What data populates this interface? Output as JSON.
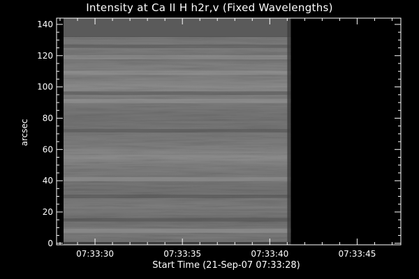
{
  "chart_data": {
    "type": "heatmap",
    "title": "Intensity at Ca II H h2r,v (Fixed Wavelengths)",
    "xlabel": "Start Time (21-Sep-07 07:33:28)",
    "ylabel": "arcsec",
    "x_ticks": [
      {
        "value": 2,
        "label": "07:33:30"
      },
      {
        "value": 7,
        "label": "07:33:35"
      },
      {
        "value": 12,
        "label": "07:33:40"
      },
      {
        "value": 17,
        "label": "07:33:45"
      }
    ],
    "y_ticks": [
      0,
      20,
      40,
      60,
      80,
      100,
      120,
      140
    ],
    "xlim": [
      -0.2,
      19.5
    ],
    "ylim": [
      -1,
      144
    ],
    "data_extent": {
      "x": [
        0.2,
        13.2
      ],
      "y": [
        -1,
        132
      ]
    },
    "saturated_top": {
      "y": [
        132,
        144
      ],
      "color": "#5a5a5a"
    },
    "background_color": "#000000",
    "colormap": "grayscale",
    "bright_bands_y": [
      8,
      41,
      91,
      109,
      119
    ],
    "dark_bands_y": [
      15,
      30,
      72,
      96,
      126
    ]
  }
}
